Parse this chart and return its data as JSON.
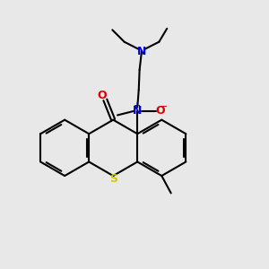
{
  "bg_color": "#e8e8e8",
  "bond_color": "#000000",
  "bond_lw": 1.5,
  "n_color": "#0000cc",
  "o_color": "#dd0000",
  "s_color": "#cccc00",
  "figsize": [
    3.0,
    3.0
  ],
  "dpi": 100,
  "xlim": [
    0,
    10
  ],
  "ylim": [
    0,
    10
  ]
}
